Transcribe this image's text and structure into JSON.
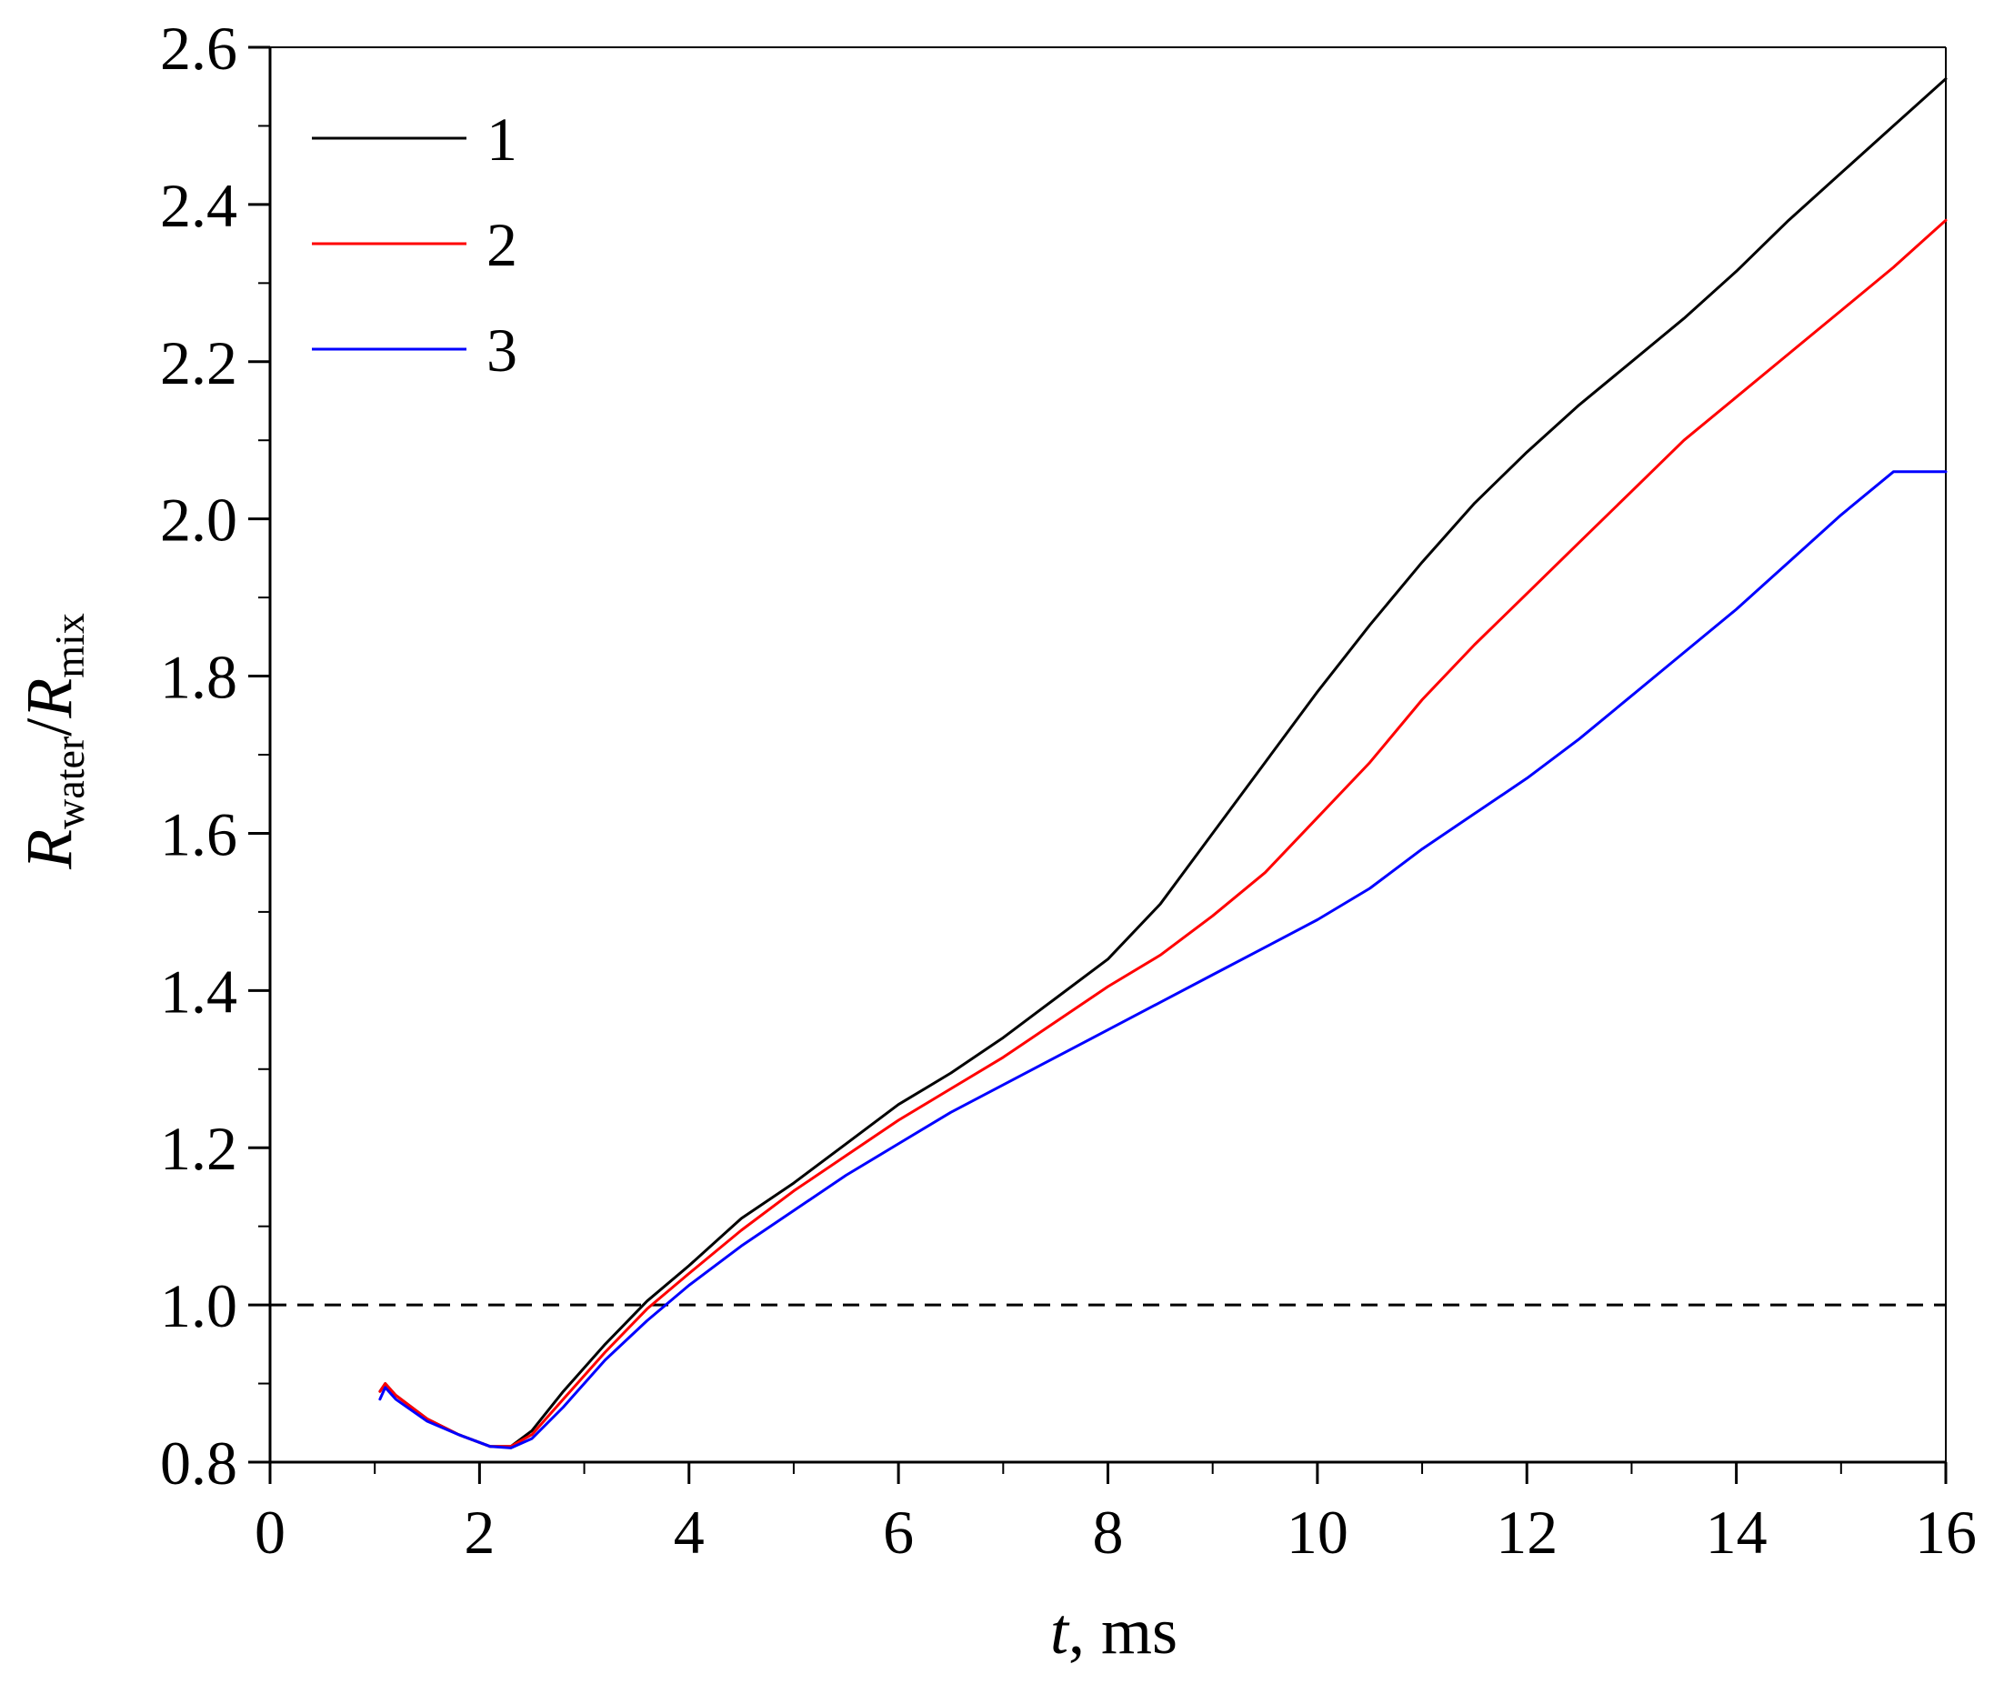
{
  "chart_data": {
    "type": "line",
    "xlabel": {
      "italic": "t",
      "rest": ", ms"
    },
    "ylabel": {
      "italic1": "R",
      "sub1": "water",
      "slash": "/",
      "italic2": "R",
      "sub2": "mix"
    },
    "xlim": [
      0,
      16
    ],
    "ylim": [
      0.8,
      2.6
    ],
    "x_ticks": [
      0,
      2,
      4,
      6,
      8,
      10,
      12,
      14,
      16
    ],
    "x_tick_labels": [
      "0",
      "2",
      "4",
      "6",
      "8",
      "10",
      "12",
      "14",
      "16"
    ],
    "y_ticks": [
      0.8,
      1.0,
      1.2,
      1.4,
      1.6,
      1.8,
      2.0,
      2.2,
      2.4,
      2.6
    ],
    "y_tick_labels": [
      "0.8",
      "1.0",
      "1.2",
      "1.4",
      "1.6",
      "1.8",
      "2.0",
      "2.2",
      "2.4",
      "2.6"
    ],
    "grid": false,
    "legend_position": "top-left",
    "reference_line": {
      "y": 1.0,
      "style": "dashed",
      "color": "#000000"
    },
    "series": [
      {
        "name": "1",
        "color": "#000000",
        "points": [
          [
            1.05,
            0.89
          ],
          [
            1.1,
            0.9
          ],
          [
            1.2,
            0.885
          ],
          [
            1.5,
            0.855
          ],
          [
            1.8,
            0.835
          ],
          [
            2.1,
            0.82
          ],
          [
            2.3,
            0.82
          ],
          [
            2.5,
            0.84
          ],
          [
            2.8,
            0.89
          ],
          [
            3.2,
            0.95
          ],
          [
            3.6,
            1.005
          ],
          [
            4.0,
            1.05
          ],
          [
            4.5,
            1.11
          ],
          [
            5.0,
            1.155
          ],
          [
            5.5,
            1.205
          ],
          [
            6.0,
            1.255
          ],
          [
            6.5,
            1.295
          ],
          [
            7.0,
            1.34
          ],
          [
            7.5,
            1.39
          ],
          [
            8.0,
            1.44
          ],
          [
            8.5,
            1.51
          ],
          [
            9.0,
            1.6
          ],
          [
            9.5,
            1.69
          ],
          [
            10.0,
            1.78
          ],
          [
            10.5,
            1.865
          ],
          [
            11.0,
            1.945
          ],
          [
            11.5,
            2.02
          ],
          [
            12.0,
            2.085
          ],
          [
            12.5,
            2.145
          ],
          [
            13.0,
            2.2
          ],
          [
            13.5,
            2.255
          ],
          [
            14.0,
            2.315
          ],
          [
            14.5,
            2.38
          ],
          [
            15.0,
            2.44
          ],
          [
            15.5,
            2.5
          ],
          [
            16.0,
            2.56
          ]
        ]
      },
      {
        "name": "2",
        "color": "#ff0000",
        "points": [
          [
            1.05,
            0.89
          ],
          [
            1.1,
            0.9
          ],
          [
            1.2,
            0.885
          ],
          [
            1.5,
            0.855
          ],
          [
            1.8,
            0.835
          ],
          [
            2.1,
            0.82
          ],
          [
            2.3,
            0.82
          ],
          [
            2.5,
            0.835
          ],
          [
            2.8,
            0.88
          ],
          [
            3.2,
            0.94
          ],
          [
            3.6,
            0.995
          ],
          [
            4.0,
            1.04
          ],
          [
            4.5,
            1.095
          ],
          [
            5.0,
            1.145
          ],
          [
            5.5,
            1.19
          ],
          [
            6.0,
            1.235
          ],
          [
            6.5,
            1.275
          ],
          [
            7.0,
            1.315
          ],
          [
            7.5,
            1.36
          ],
          [
            8.0,
            1.405
          ],
          [
            8.5,
            1.445
          ],
          [
            9.0,
            1.495
          ],
          [
            9.5,
            1.55
          ],
          [
            10.0,
            1.62
          ],
          [
            10.5,
            1.69
          ],
          [
            11.0,
            1.77
          ],
          [
            11.5,
            1.84
          ],
          [
            12.0,
            1.905
          ],
          [
            12.5,
            1.97
          ],
          [
            13.0,
            2.035
          ],
          [
            13.5,
            2.1
          ],
          [
            14.0,
            2.155
          ],
          [
            14.5,
            2.21
          ],
          [
            15.0,
            2.265
          ],
          [
            15.5,
            2.32
          ],
          [
            16.0,
            2.38
          ]
        ]
      },
      {
        "name": "3",
        "color": "#0000ff",
        "points": [
          [
            1.05,
            0.88
          ],
          [
            1.1,
            0.895
          ],
          [
            1.2,
            0.88
          ],
          [
            1.5,
            0.852
          ],
          [
            1.8,
            0.835
          ],
          [
            2.1,
            0.82
          ],
          [
            2.3,
            0.818
          ],
          [
            2.5,
            0.83
          ],
          [
            2.8,
            0.87
          ],
          [
            3.2,
            0.93
          ],
          [
            3.6,
            0.98
          ],
          [
            4.0,
            1.025
          ],
          [
            4.5,
            1.075
          ],
          [
            5.0,
            1.12
          ],
          [
            5.5,
            1.165
          ],
          [
            6.0,
            1.205
          ],
          [
            6.5,
            1.245
          ],
          [
            7.0,
            1.28
          ],
          [
            7.5,
            1.315
          ],
          [
            8.0,
            1.35
          ],
          [
            8.5,
            1.385
          ],
          [
            9.0,
            1.42
          ],
          [
            9.5,
            1.455
          ],
          [
            10.0,
            1.49
          ],
          [
            10.5,
            1.53
          ],
          [
            11.0,
            1.58
          ],
          [
            11.5,
            1.625
          ],
          [
            12.0,
            1.67
          ],
          [
            12.5,
            1.72
          ],
          [
            13.0,
            1.775
          ],
          [
            13.5,
            1.83
          ],
          [
            14.0,
            1.885
          ],
          [
            14.5,
            1.945
          ],
          [
            15.0,
            2.005
          ],
          [
            15.5,
            2.06
          ],
          [
            16.0,
            2.06
          ]
        ]
      }
    ]
  }
}
